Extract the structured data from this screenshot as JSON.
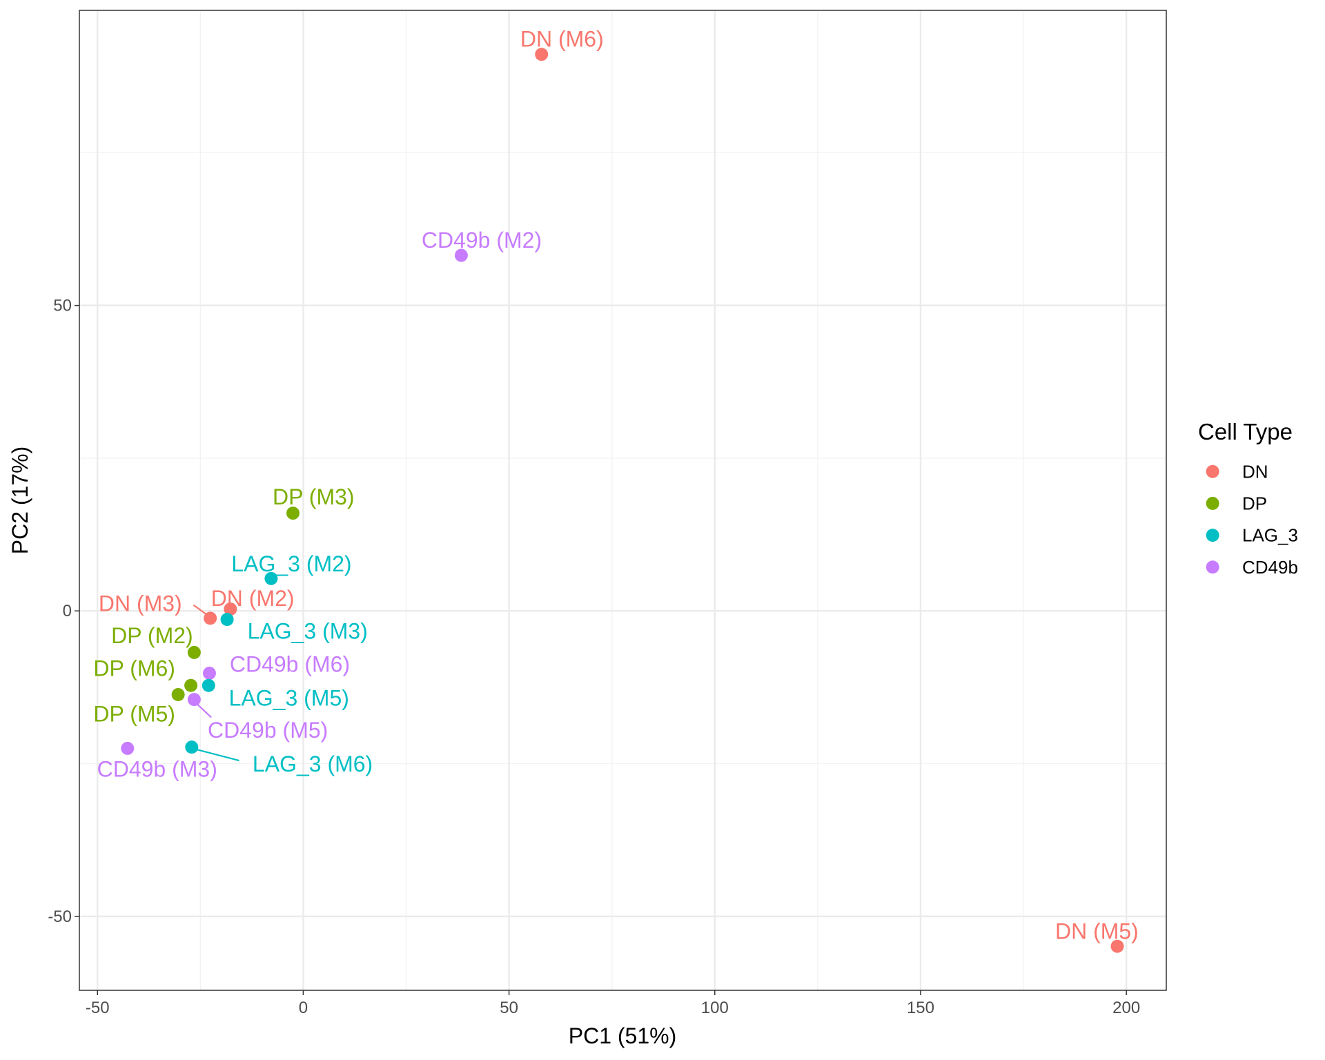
{
  "chart_data": {
    "type": "scatter",
    "xlabel": "PC1 (51%)",
    "ylabel": "PC2 (17%)",
    "xlim": [
      -54.4,
      209.7
    ],
    "ylim": [
      -62.1,
      98.3
    ],
    "x_ticks": [
      -50,
      0,
      50,
      100,
      150,
      200
    ],
    "y_ticks": [
      -50,
      0,
      50
    ],
    "x_tick_labels": [
      "-50",
      "0",
      "50",
      "100",
      "150",
      "200"
    ],
    "y_tick_labels": [
      "-50",
      "0",
      "50"
    ],
    "grid": true,
    "legend": {
      "title": "Cell Type",
      "placement": "right",
      "entries": [
        {
          "label": "DN",
          "color": "#F8766D"
        },
        {
          "label": "DP",
          "color": "#7CAE00"
        },
        {
          "label": "LAG_3",
          "color": "#00BFC4"
        },
        {
          "label": "CD49b",
          "color": "#C77CFF"
        }
      ]
    },
    "points": [
      {
        "label": "DN (M6)",
        "group": "DN",
        "x": 57.9,
        "y": 91.1
      },
      {
        "label": "CD49b (M2)",
        "group": "CD49b",
        "x": 38.4,
        "y": 58.2
      },
      {
        "label": "DP (M3)",
        "group": "DP",
        "x": -2.5,
        "y": 16.0
      },
      {
        "label": "LAG_3 (M2)",
        "group": "LAG_3",
        "x": -7.8,
        "y": 5.3
      },
      {
        "label": "DN (M2)",
        "group": "DN",
        "x": -17.7,
        "y": 0.3
      },
      {
        "label": "DN (M3)",
        "group": "DN",
        "x": -22.6,
        "y": -1.2
      },
      {
        "label": "LAG_3 (M3)",
        "group": "LAG_3",
        "x": -18.5,
        "y": -1.4
      },
      {
        "label": "DP (M2)",
        "group": "DP",
        "x": -26.5,
        "y": -6.8
      },
      {
        "label": "CD49b (M6)",
        "group": "CD49b",
        "x": -22.8,
        "y": -10.2
      },
      {
        "label": "DP (M6)",
        "group": "DP",
        "x": -27.3,
        "y": -12.2
      },
      {
        "label": "LAG_3 (M5)",
        "group": "LAG_3",
        "x": -23.0,
        "y": -12.2
      },
      {
        "label": "DP (M5)",
        "group": "DP",
        "x": -30.4,
        "y": -13.7
      },
      {
        "label": "CD49b (M5)",
        "group": "CD49b",
        "x": -26.5,
        "y": -14.5
      },
      {
        "label": "LAG_3 (M6)",
        "group": "LAG_3",
        "x": -27.1,
        "y": -22.3
      },
      {
        "label": "CD49b (M3)",
        "group": "CD49b",
        "x": -42.7,
        "y": -22.5
      },
      {
        "label": "DN (M5)",
        "group": "DN",
        "x": 197.8,
        "y": -54.9
      }
    ]
  }
}
